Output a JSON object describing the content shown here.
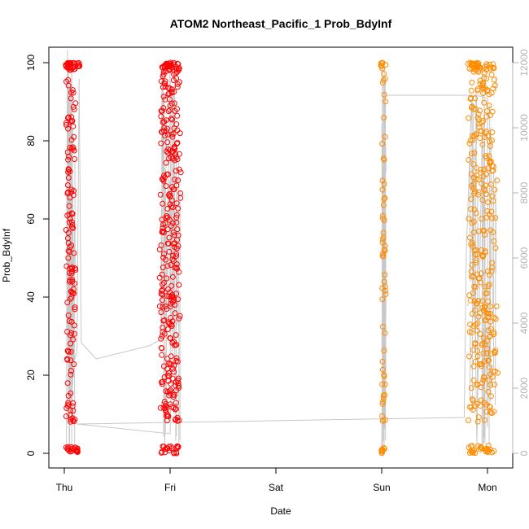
{
  "chart_data": {
    "type": "scatter",
    "title": "ATOM2 Northeast_Pacific_1 Prob_BdyInf",
    "xlabel": "Date",
    "ylabel": "Prob_BdyInf",
    "ylim": [
      0,
      100
    ],
    "y_ticks": [
      "0",
      "20",
      "40",
      "60",
      "80",
      "100"
    ],
    "y2lim": [
      0,
      12000
    ],
    "y2_ticks": [
      "0",
      "2000",
      "4000",
      "6000",
      "8000",
      "10000",
      "12000"
    ],
    "x_ticks": [
      "Thu",
      "Fri",
      "Sat",
      "Sun",
      "Mon"
    ],
    "x_tick_days": [
      0,
      1,
      2,
      3,
      4
    ],
    "xlim_days": [
      -0.2,
      4.2
    ],
    "grid": false,
    "colors": {
      "early": "#ff0000",
      "late": "#ff8c00",
      "line": "#c8c8c8",
      "right_axis": "#b3b3b3"
    },
    "clusters": [
      {
        "day": 0.06,
        "spread": 0.1,
        "color": "early",
        "count": 160,
        "spikes": [
          [
            0.045,
            100
          ],
          [
            0.13,
            100
          ],
          [
            0.11,
            0.5
          ],
          [
            0.12,
            0.2
          ]
        ]
      },
      {
        "day": 1.0,
        "spread": 0.22,
        "color": "early",
        "count": 340,
        "spikes": [
          [
            0.96,
            100
          ],
          [
            0.99,
            100
          ]
        ]
      },
      {
        "day": 3.02,
        "spread": 0.04,
        "color": "late",
        "count": 60,
        "spikes": [
          [
            3.0,
            100
          ],
          [
            3.0,
            0
          ]
        ]
      },
      {
        "day": 3.95,
        "spread": 0.3,
        "color": "late",
        "count": 340,
        "spikes": [
          [
            3.85,
            100
          ],
          [
            3.9,
            100
          ],
          [
            4.0,
            0.3
          ]
        ]
      }
    ],
    "count_series": {
      "name": "",
      "axis": "right",
      "points": [
        [
          0.02,
          200
        ],
        [
          0.03,
          12400
        ],
        [
          0.05,
          300
        ],
        [
          0.07,
          11800
        ],
        [
          0.09,
          2800
        ],
        [
          0.12,
          3100
        ],
        [
          0.14,
          11500
        ],
        [
          0.16,
          3400
        ],
        [
          0.3,
          2900
        ],
        [
          0.8,
          3300
        ],
        [
          0.92,
          3500
        ],
        [
          0.93,
          11800
        ],
        [
          0.95,
          200
        ],
        [
          1.0,
          12000
        ],
        [
          1.02,
          3500
        ],
        [
          1.0,
          600
        ],
        [
          0.12,
          900
        ],
        [
          3.78,
          1100
        ],
        [
          3.8,
          6200
        ],
        [
          3.85,
          10800
        ],
        [
          3.9,
          300
        ],
        [
          3.95,
          10000
        ],
        [
          4.0,
          800
        ],
        [
          4.0,
          10900
        ],
        [
          3.9,
          11000
        ],
        [
          3.03,
          11000
        ],
        [
          3.0,
          200
        ],
        [
          3.02,
          6400
        ],
        [
          3.04,
          2600
        ]
      ]
    }
  }
}
